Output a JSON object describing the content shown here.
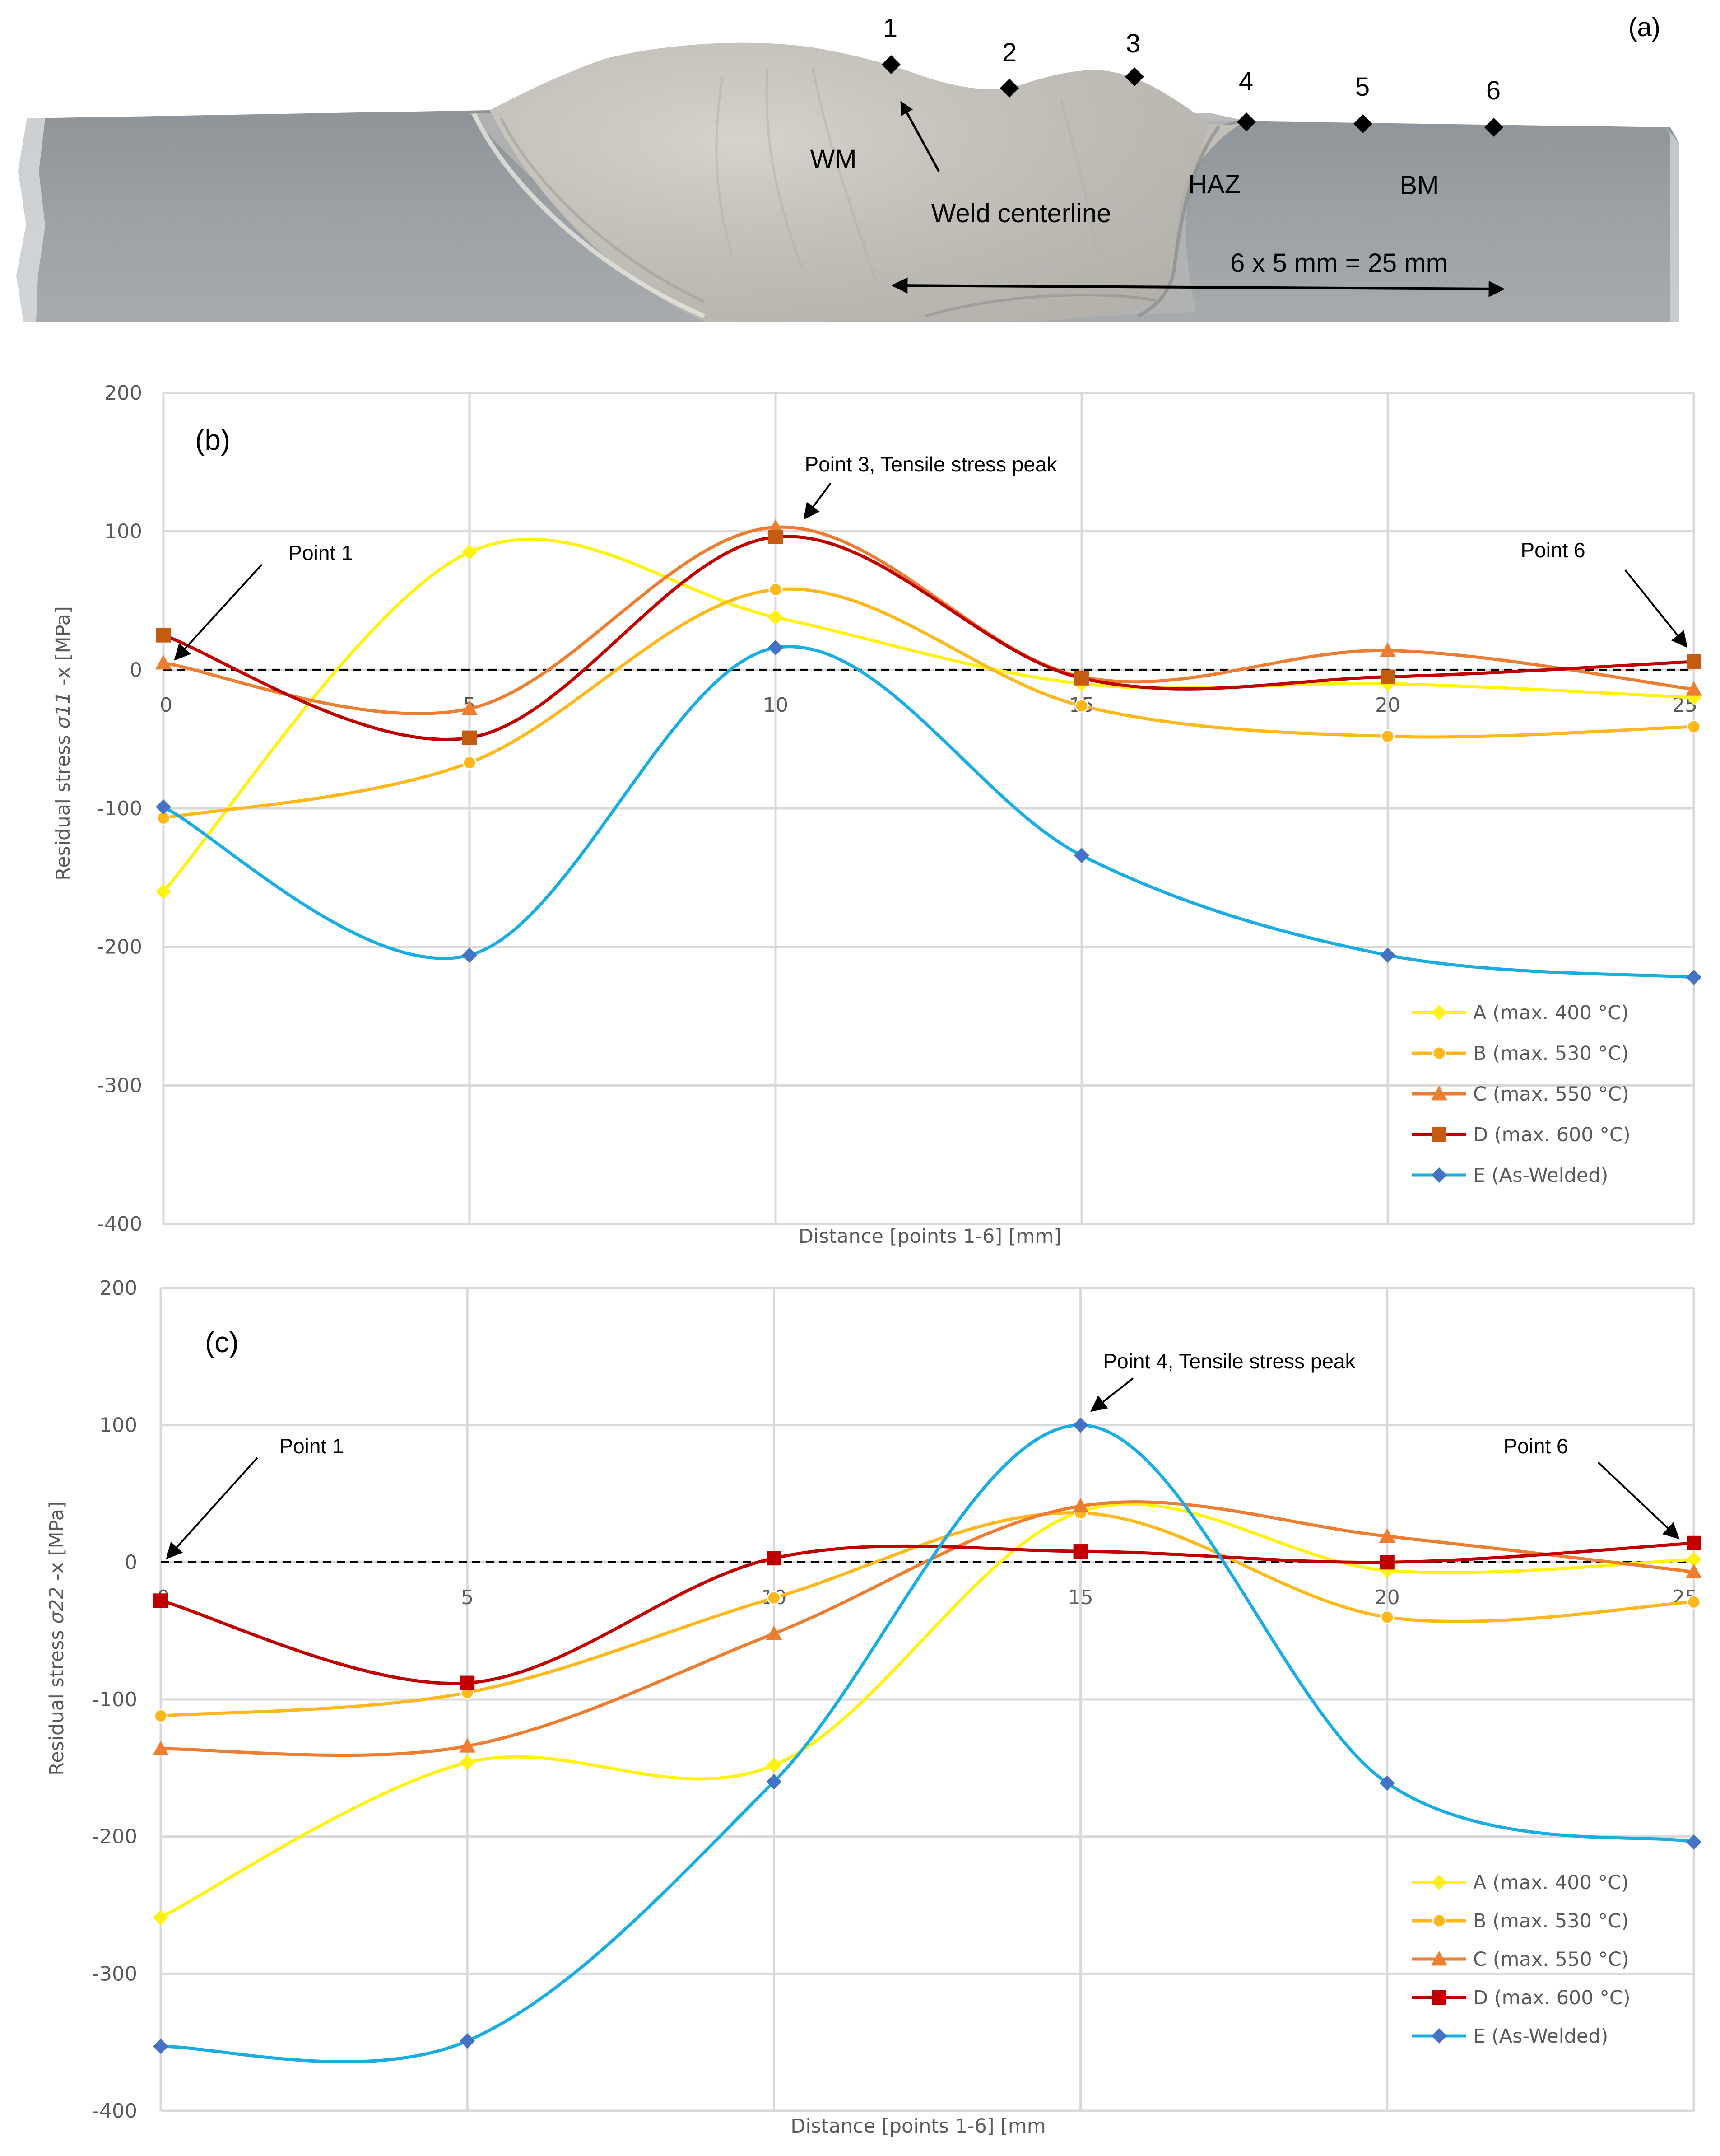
{
  "panel_a": {
    "panel_label": "(a)",
    "point_labels": [
      "1",
      "2",
      "3",
      "4",
      "5",
      "6"
    ],
    "region_labels": {
      "wm": "WM",
      "haz": "HAZ",
      "bm": "BM"
    },
    "centerline_label": "Weld centerline",
    "dimension_label": "6 x 5 mm = 25 mm"
  },
  "chart_data": [
    {
      "type": "line",
      "panel_label": "(b)",
      "title": "",
      "xlabel": "Distance [points 1-6] [mm]",
      "ylabel": "Residual stress σ11 -x [MPa]",
      "ylabel_parts": [
        "Residual stress ",
        "σ11",
        " -x [MPa]"
      ],
      "x": [
        0,
        5,
        10,
        15,
        20,
        25
      ],
      "x_tick_labels": [
        "0",
        "5",
        "10",
        "15",
        "20",
        "25"
      ],
      "xlim": [
        0,
        25
      ],
      "ylim": [
        -400,
        200
      ],
      "y_ticks": [
        200,
        100,
        0,
        -100,
        -200,
        -300,
        -400
      ],
      "y_tick_labels": [
        "200",
        "100",
        "0",
        "-100",
        "-200",
        "-300",
        "-400"
      ],
      "grid": true,
      "legend_position": "bottom-right",
      "series": [
        {
          "name": "A (max. 400 °C)",
          "color": "#FFF212",
          "marker": "diamond",
          "values": [
            -160,
            85,
            38,
            -10,
            -10,
            -20
          ]
        },
        {
          "name": "B (max. 530 °C)",
          "color": "#FFB81C",
          "marker": "circle",
          "values": [
            -107,
            -67,
            58,
            -26,
            -48,
            -41
          ]
        },
        {
          "name": "C (max. 550 °C)",
          "color": "#ED7D31",
          "marker": "triangle",
          "values": [
            5,
            -28,
            103,
            -5,
            14,
            -14
          ]
        },
        {
          "name": "D (max. 600 °C)",
          "color": "#C00000",
          "marker": "square",
          "marker_color": "#C55A11",
          "values": [
            25,
            -49,
            96,
            -6,
            -5,
            6
          ]
        },
        {
          "name": "E (As-Welded)",
          "color": "#1AADE4",
          "marker": "diamond",
          "marker_color": "#4472C4",
          "values": [
            -99,
            -206,
            16,
            -134,
            -206,
            -222
          ]
        }
      ],
      "annotations": [
        {
          "text": "Point 1",
          "x": 0,
          "y": 0
        },
        {
          "text": "Point 3, Tensile stress peak",
          "x": 10,
          "y": 103
        },
        {
          "text": "Point 6",
          "x": 25,
          "y": 6
        }
      ]
    },
    {
      "type": "line",
      "panel_label": "(c)",
      "title": "",
      "xlabel": "Distance [points 1-6] [mm",
      "ylabel": "Residual stress σ22 -x  [MPa]",
      "ylabel_parts": [
        "Residual stress ",
        "σ22",
        " -x  [MPa]"
      ],
      "x": [
        0,
        5,
        10,
        15,
        20,
        25
      ],
      "x_tick_labels": [
        "0",
        "5",
        "10",
        "15",
        "20",
        "25"
      ],
      "xlim": [
        0,
        25
      ],
      "ylim": [
        -400,
        200
      ],
      "y_ticks": [
        200,
        100,
        0,
        -100,
        -200,
        -300,
        -400
      ],
      "y_tick_labels": [
        "200",
        "100",
        "0",
        "-100",
        "-200",
        "-300",
        "-400"
      ],
      "grid": true,
      "legend_position": "bottom-right",
      "series": [
        {
          "name": "A (max. 400 °C)",
          "color": "#FFF212",
          "marker": "diamond",
          "values": [
            -259,
            -146,
            -148,
            37,
            -6,
            2
          ]
        },
        {
          "name": "B (max. 530 °C)",
          "color": "#FFB81C",
          "marker": "circle",
          "values": [
            -112,
            -95,
            -26,
            36,
            -40,
            -29
          ]
        },
        {
          "name": "C (max. 550 °C)",
          "color": "#ED7D31",
          "marker": "triangle",
          "values": [
            -136,
            -134,
            -52,
            41,
            19,
            -7
          ]
        },
        {
          "name": "D (max. 600 °C)",
          "color": "#C00000",
          "marker": "square",
          "marker_color": "#C00000",
          "values": [
            -28,
            -88,
            3,
            8,
            0,
            14
          ]
        },
        {
          "name": "E (As-Welded)",
          "color": "#1AADE4",
          "marker": "diamond",
          "marker_color": "#4472C4",
          "values": [
            -353,
            -349,
            -160,
            100,
            -161,
            -204
          ]
        }
      ],
      "annotations": [
        {
          "text": "Point 1",
          "x": 0,
          "y": 0
        },
        {
          "text": "Point 4, Tensile stress peak",
          "x": 15,
          "y": 100
        },
        {
          "text": "Point 6",
          "x": 25,
          "y": 14
        }
      ]
    }
  ]
}
